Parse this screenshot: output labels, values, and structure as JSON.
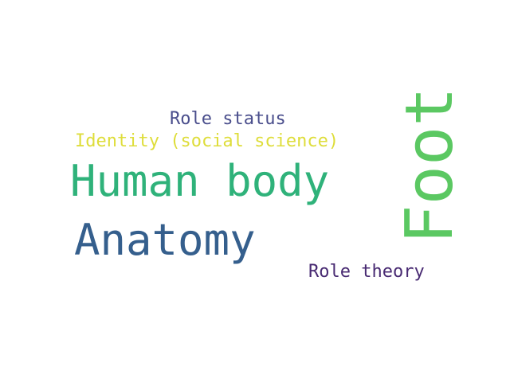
{
  "words": [
    {
      "text": "Role status",
      "color": "#4a4e8c"
    },
    {
      "text": "Identity (social science)",
      "color": "#dedd3a"
    },
    {
      "text": "Human body",
      "color": "#2fb27a"
    },
    {
      "text": "Anatomy",
      "color": "#355f8d"
    },
    {
      "text": "Foot",
      "color": "#5bc862"
    },
    {
      "text": "Role theory",
      "color": "#482a72"
    }
  ]
}
